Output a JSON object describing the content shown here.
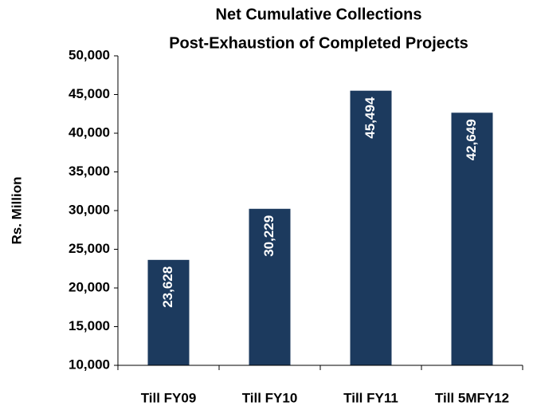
{
  "chart_data": {
    "type": "bar",
    "title": "Net Cumulative Collections",
    "subtitle": "Post-Exhaustion of Completed Projects",
    "y_label": "Rs. Million",
    "categories": [
      "Till FY09",
      "Till FY10",
      "Till FY11",
      "Till 5MFY12"
    ],
    "values": [
      23628,
      30229,
      45494,
      42649
    ],
    "value_labels": [
      "23,628",
      "30,229",
      "45,494",
      "42,649"
    ],
    "color": "#1c3a5e",
    "ylim": [
      10000,
      50000
    ],
    "yticks": [
      {
        "value": 10000,
        "label": "10,000"
      },
      {
        "value": 15000,
        "label": "15,000"
      },
      {
        "value": 20000,
        "label": "20,000"
      },
      {
        "value": 25000,
        "label": "25,000"
      },
      {
        "value": 30000,
        "label": "30,000"
      },
      {
        "value": 35000,
        "label": "35,000"
      },
      {
        "value": 40000,
        "label": "40,000"
      },
      {
        "value": 45000,
        "label": "45,000"
      },
      {
        "value": 50000,
        "label": "50,000"
      }
    ]
  }
}
